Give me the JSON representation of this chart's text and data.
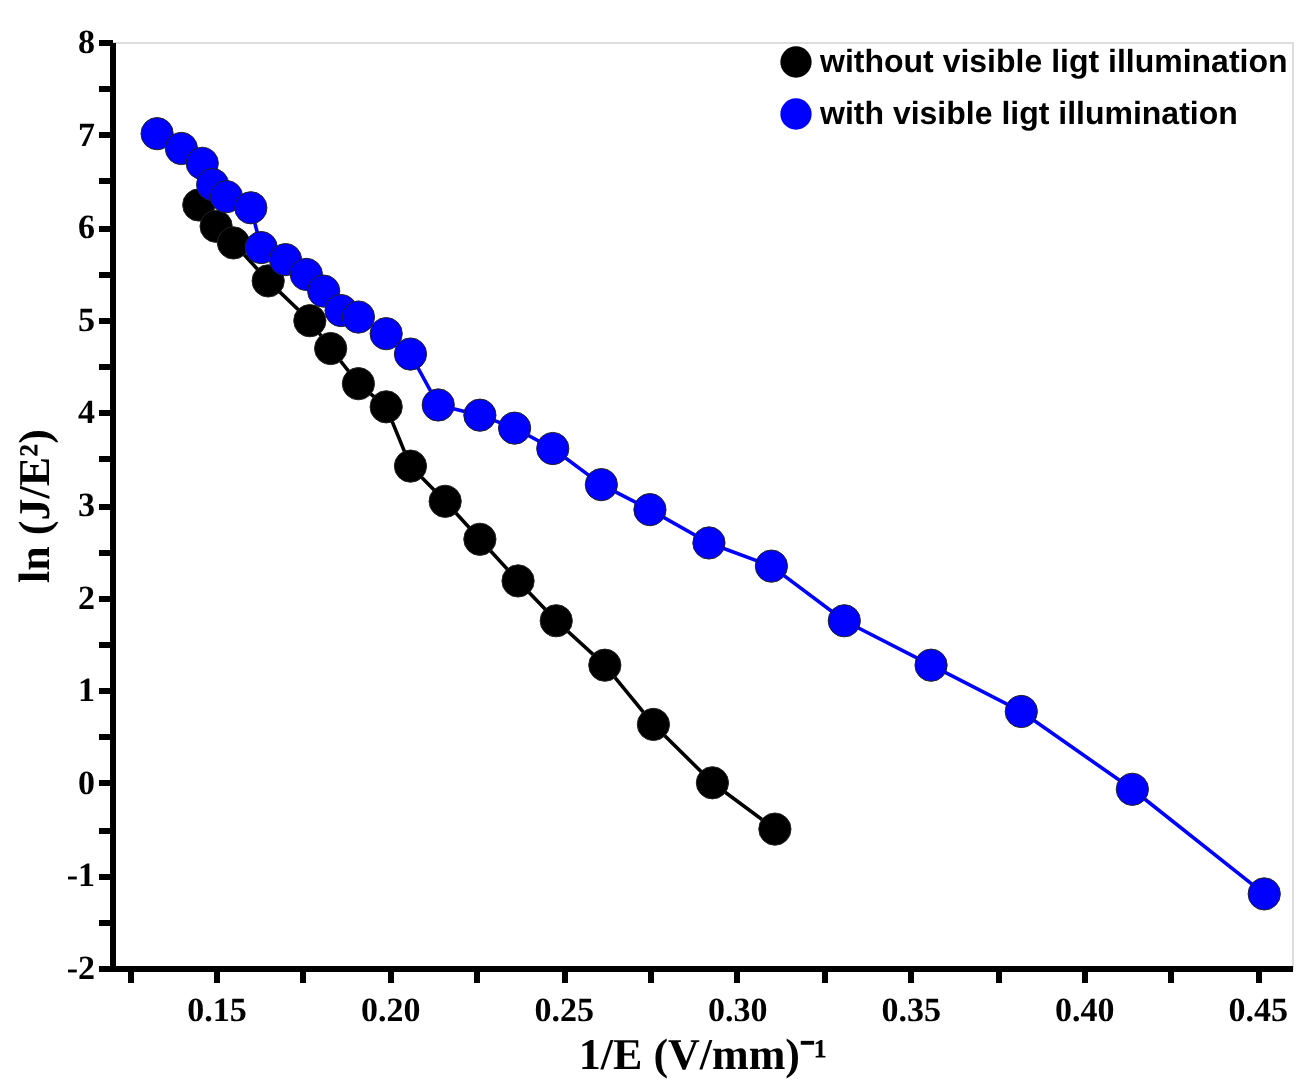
{
  "chart_data": {
    "type": "line",
    "xlabel": "1/E (V/mm)⁻¹",
    "ylabel": "ln (J/E²)",
    "xlim": [
      0.12,
      0.46
    ],
    "ylim": [
      -2,
      8
    ],
    "xticks": [
      {
        "value": 0.125,
        "label": null
      },
      0.15,
      {
        "value": 0.175,
        "label": null
      },
      {
        "value": 0.2,
        "label": "0.20"
      },
      {
        "value": 0.225,
        "label": null
      },
      0.25,
      {
        "value": 0.275,
        "label": null
      },
      {
        "value": 0.3,
        "label": "0.30"
      },
      {
        "value": 0.325,
        "label": null
      },
      0.35,
      {
        "value": 0.375,
        "label": null
      },
      {
        "value": 0.4,
        "label": "0.40"
      },
      {
        "value": 0.425,
        "label": null
      },
      0.45
    ],
    "yticks": [
      -2,
      {
        "value": -1.5,
        "label": null
      },
      -1,
      {
        "value": -0.5,
        "label": null
      },
      0,
      {
        "value": 0.5,
        "label": null
      },
      1,
      {
        "value": 1.5,
        "label": null
      },
      2,
      {
        "value": 2.5,
        "label": null
      },
      3,
      {
        "value": 3.5,
        "label": null
      },
      4,
      {
        "value": 4.5,
        "label": null
      },
      5,
      {
        "value": 5.5,
        "label": null
      },
      6,
      {
        "value": 6.5,
        "label": null
      },
      7,
      {
        "value": 7.5,
        "label": null
      },
      8
    ],
    "grid": false,
    "legend": "top right",
    "marker": "circle",
    "line_style": "solid",
    "series": [
      {
        "name": "without visible ligt illumination",
        "color": "#000000",
        "x": [
          0.145,
          0.15,
          0.155,
          0.165,
          0.177,
          0.183,
          0.191,
          0.199,
          0.206,
          0.216,
          0.226,
          0.237,
          0.248,
          0.262,
          0.276,
          0.293,
          0.311
        ],
        "values": [
          6.24,
          6.01,
          5.83,
          5.42,
          4.99,
          4.69,
          4.31,
          4.06,
          3.42,
          3.04,
          2.63,
          2.18,
          1.75,
          1.27,
          0.63,
          0.0,
          -0.5
        ]
      },
      {
        "name": "with visible ligt illumination",
        "color": "#0000ff",
        "x": [
          0.133,
          0.14,
          0.146,
          0.149,
          0.153,
          0.16,
          0.163,
          0.17,
          0.176,
          0.181,
          0.186,
          0.191,
          0.199,
          0.206,
          0.214,
          0.226,
          0.236,
          0.247,
          0.261,
          0.275,
          0.292,
          0.31,
          0.331,
          0.356,
          0.382,
          0.414,
          0.452
        ],
        "values": [
          7.01,
          6.85,
          6.69,
          6.46,
          6.33,
          6.21,
          5.78,
          5.65,
          5.49,
          5.31,
          5.1,
          5.03,
          4.85,
          4.63,
          4.08,
          3.97,
          3.83,
          3.61,
          3.22,
          2.95,
          2.59,
          2.34,
          1.75,
          1.27,
          0.77,
          -0.07,
          -1.2
        ]
      }
    ]
  }
}
